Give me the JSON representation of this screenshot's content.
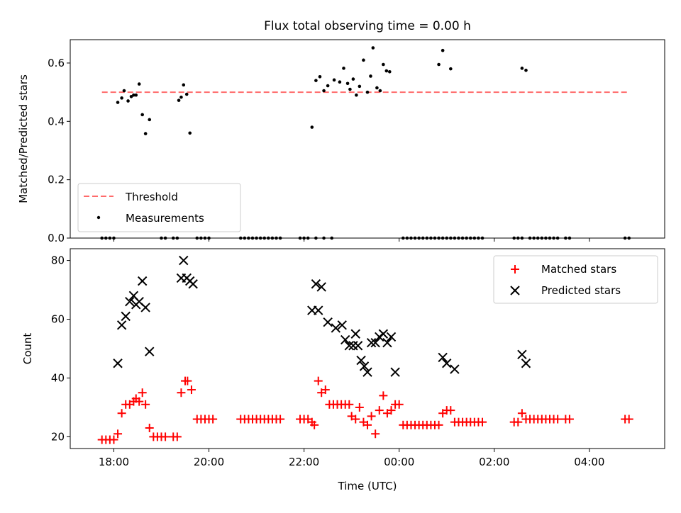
{
  "title": "Flux total observing time = 0.00 h",
  "colors": {
    "threshold": "#ff6b6b",
    "measurement": "#000000",
    "matched": "#ff0000",
    "predicted": "#000000"
  },
  "chart_data": [
    {
      "type": "scatter",
      "title": "Flux total observing time = 0.00 h",
      "xlabel": "",
      "ylabel": "Matched/Predicted stars",
      "xlim": [
        "17:05",
        "05:35"
      ],
      "ylim": [
        0.0,
        0.68
      ],
      "y_ticks": [
        0.0,
        0.2,
        0.4,
        0.6
      ],
      "y_tick_labels": [
        "0.0",
        "0.2",
        "0.4",
        "0.6"
      ],
      "grid": false,
      "legend": "lower-left",
      "threshold": {
        "name": "Threshold",
        "value": 0.5,
        "x_start": "17:45",
        "x_end": "04:50",
        "style": "dashed"
      },
      "series": [
        {
          "name": "Measurements",
          "points": [
            [
              "17:45",
              0
            ],
            [
              "17:50",
              0
            ],
            [
              "17:55",
              0
            ],
            [
              "18:00",
              0
            ],
            [
              "18:05",
              0.465
            ],
            [
              "18:10",
              0.48
            ],
            [
              "18:13",
              0.505
            ],
            [
              "18:18",
              0.47
            ],
            [
              "18:22",
              0.485
            ],
            [
              "18:25",
              0.49
            ],
            [
              "18:28",
              0.49
            ],
            [
              "18:32",
              0.528
            ],
            [
              "18:36",
              0.423
            ],
            [
              "18:40",
              0.358
            ],
            [
              "18:45",
              0.406
            ],
            [
              "19:00",
              0
            ],
            [
              "19:05",
              0
            ],
            [
              "19:15",
              0
            ],
            [
              "19:20",
              0
            ],
            [
              "19:22",
              0.472
            ],
            [
              "19:25",
              0.483
            ],
            [
              "19:28",
              0.525
            ],
            [
              "19:32",
              0.493
            ],
            [
              "19:36",
              0.36
            ],
            [
              "19:45",
              0
            ],
            [
              "19:50",
              0
            ],
            [
              "19:55",
              0
            ],
            [
              "20:00",
              0
            ],
            [
              "20:40",
              0
            ],
            [
              "20:45",
              0
            ],
            [
              "20:50",
              0
            ],
            [
              "20:55",
              0
            ],
            [
              "21:00",
              0
            ],
            [
              "21:05",
              0
            ],
            [
              "21:10",
              0
            ],
            [
              "21:15",
              0
            ],
            [
              "21:20",
              0
            ],
            [
              "21:25",
              0
            ],
            [
              "21:30",
              0
            ],
            [
              "21:55",
              0
            ],
            [
              "22:00",
              0
            ],
            [
              "22:05",
              0
            ],
            [
              "22:15",
              0
            ],
            [
              "22:10",
              0.38
            ],
            [
              "22:15",
              0.54
            ],
            [
              "22:20",
              0.553
            ],
            [
              "22:25",
              0.505
            ],
            [
              "22:30",
              0.522
            ],
            [
              "22:38",
              0.542
            ],
            [
              "22:45",
              0.535
            ],
            [
              "22:50",
              0.582
            ],
            [
              "22:55",
              0.53
            ],
            [
              "22:58",
              0.51
            ],
            [
              "23:02",
              0.545
            ],
            [
              "23:06",
              0.49
            ],
            [
              "23:10",
              0.52
            ],
            [
              "23:15",
              0.61
            ],
            [
              "23:20",
              0.5
            ],
            [
              "23:24",
              0.555
            ],
            [
              "23:27",
              0.652
            ],
            [
              "23:32",
              0.515
            ],
            [
              "23:36",
              0.505
            ],
            [
              "23:40",
              0.595
            ],
            [
              "23:44",
              0.573
            ],
            [
              "23:48",
              0.57
            ],
            [
              "22:25",
              0
            ],
            [
              "22:35",
              0
            ],
            [
              "00:05",
              0
            ],
            [
              "00:10",
              0
            ],
            [
              "00:15",
              0
            ],
            [
              "00:20",
              0
            ],
            [
              "00:25",
              0
            ],
            [
              "00:30",
              0
            ],
            [
              "00:35",
              0
            ],
            [
              "00:40",
              0
            ],
            [
              "00:45",
              0
            ],
            [
              "00:50",
              0
            ],
            [
              "00:50",
              0.595
            ],
            [
              "00:55",
              0.643
            ],
            [
              "01:05",
              0.58
            ],
            [
              "00:55",
              0
            ],
            [
              "01:00",
              0
            ],
            [
              "01:05",
              0
            ],
            [
              "01:10",
              0
            ],
            [
              "01:15",
              0
            ],
            [
              "01:20",
              0
            ],
            [
              "01:25",
              0
            ],
            [
              "01:30",
              0
            ],
            [
              "01:35",
              0
            ],
            [
              "01:40",
              0
            ],
            [
              "01:45",
              0
            ],
            [
              "02:25",
              0
            ],
            [
              "02:30",
              0
            ],
            [
              "02:35",
              0
            ],
            [
              "02:35",
              0.582
            ],
            [
              "02:40",
              0.575
            ],
            [
              "02:45",
              0
            ],
            [
              "02:50",
              0
            ],
            [
              "02:55",
              0
            ],
            [
              "03:00",
              0
            ],
            [
              "03:05",
              0
            ],
            [
              "03:10",
              0
            ],
            [
              "03:15",
              0
            ],
            [
              "03:20",
              0
            ],
            [
              "03:30",
              0
            ],
            [
              "03:35",
              0
            ],
            [
              "04:45",
              0
            ],
            [
              "04:50",
              0
            ]
          ]
        }
      ]
    },
    {
      "type": "scatter",
      "xlabel": "Time (UTC)",
      "ylabel": "Count",
      "xlim": [
        "17:05",
        "05:35"
      ],
      "ylim": [
        16,
        84
      ],
      "y_ticks": [
        20,
        40,
        60,
        80
      ],
      "y_tick_labels": [
        "20",
        "40",
        "60",
        "80"
      ],
      "x_ticks": [
        "18:00",
        "20:00",
        "22:00",
        "00:00",
        "02:00",
        "04:00"
      ],
      "x_tick_labels": [
        "18:00",
        "20:00",
        "22:00",
        "00:00",
        "02:00",
        "04:00"
      ],
      "grid": false,
      "legend": "top-right",
      "series": [
        {
          "name": "Matched stars",
          "marker": "plus",
          "points": [
            [
              "17:45",
              19
            ],
            [
              "17:50",
              19
            ],
            [
              "17:55",
              19
            ],
            [
              "18:00",
              19
            ],
            [
              "18:05",
              21
            ],
            [
              "18:10",
              28
            ],
            [
              "18:15",
              31
            ],
            [
              "18:20",
              31
            ],
            [
              "18:25",
              32
            ],
            [
              "18:28",
              33
            ],
            [
              "18:32",
              32
            ],
            [
              "18:36",
              35
            ],
            [
              "18:40",
              31
            ],
            [
              "18:45",
              23
            ],
            [
              "18:50",
              20
            ],
            [
              "18:55",
              20
            ],
            [
              "19:00",
              20
            ],
            [
              "19:05",
              20
            ],
            [
              "19:15",
              20
            ],
            [
              "19:20",
              20
            ],
            [
              "19:25",
              35
            ],
            [
              "19:30",
              39
            ],
            [
              "19:33",
              39
            ],
            [
              "19:38",
              36
            ],
            [
              "19:45",
              26
            ],
            [
              "19:50",
              26
            ],
            [
              "19:55",
              26
            ],
            [
              "20:00",
              26
            ],
            [
              "20:05",
              26
            ],
            [
              "20:40",
              26
            ],
            [
              "20:45",
              26
            ],
            [
              "20:50",
              26
            ],
            [
              "20:55",
              26
            ],
            [
              "21:00",
              26
            ],
            [
              "21:05",
              26
            ],
            [
              "21:10",
              26
            ],
            [
              "21:15",
              26
            ],
            [
              "21:20",
              26
            ],
            [
              "21:25",
              26
            ],
            [
              "21:30",
              26
            ],
            [
              "21:55",
              26
            ],
            [
              "22:00",
              26
            ],
            [
              "22:05",
              26
            ],
            [
              "22:10",
              25
            ],
            [
              "22:13",
              24
            ],
            [
              "22:18",
              39
            ],
            [
              "22:22",
              35
            ],
            [
              "22:27",
              36
            ],
            [
              "22:32",
              31
            ],
            [
              "22:37",
              31
            ],
            [
              "22:42",
              31
            ],
            [
              "22:47",
              31
            ],
            [
              "22:52",
              31
            ],
            [
              "22:57",
              31
            ],
            [
              "23:00",
              27
            ],
            [
              "23:05",
              26
            ],
            [
              "23:10",
              30
            ],
            [
              "23:15",
              25
            ],
            [
              "23:20",
              24
            ],
            [
              "23:25",
              27
            ],
            [
              "23:30",
              21
            ],
            [
              "23:35",
              29
            ],
            [
              "23:40",
              34
            ],
            [
              "23:45",
              28
            ],
            [
              "23:50",
              29
            ],
            [
              "23:55",
              31
            ],
            [
              "00:00",
              31
            ],
            [
              "00:05",
              24
            ],
            [
              "00:10",
              24
            ],
            [
              "00:15",
              24
            ],
            [
              "00:20",
              24
            ],
            [
              "00:25",
              24
            ],
            [
              "00:30",
              24
            ],
            [
              "00:35",
              24
            ],
            [
              "00:40",
              24
            ],
            [
              "00:45",
              24
            ],
            [
              "00:50",
              24
            ],
            [
              "00:55",
              28
            ],
            [
              "01:00",
              29
            ],
            [
              "01:05",
              29
            ],
            [
              "01:10",
              25
            ],
            [
              "01:15",
              25
            ],
            [
              "01:20",
              25
            ],
            [
              "01:25",
              25
            ],
            [
              "01:30",
              25
            ],
            [
              "01:35",
              25
            ],
            [
              "01:40",
              25
            ],
            [
              "01:45",
              25
            ],
            [
              "02:25",
              25
            ],
            [
              "02:30",
              25
            ],
            [
              "02:35",
              28
            ],
            [
              "02:40",
              26
            ],
            [
              "02:45",
              26
            ],
            [
              "02:50",
              26
            ],
            [
              "02:55",
              26
            ],
            [
              "03:00",
              26
            ],
            [
              "03:05",
              26
            ],
            [
              "03:10",
              26
            ],
            [
              "03:15",
              26
            ],
            [
              "03:20",
              26
            ],
            [
              "03:30",
              26
            ],
            [
              "03:35",
              26
            ],
            [
              "04:45",
              26
            ],
            [
              "04:50",
              26
            ]
          ]
        },
        {
          "name": "Predicted stars",
          "marker": "x",
          "points": [
            [
              "18:05",
              45
            ],
            [
              "18:10",
              58
            ],
            [
              "18:15",
              61
            ],
            [
              "18:20",
              66
            ],
            [
              "18:25",
              68
            ],
            [
              "18:28",
              65
            ],
            [
              "18:32",
              66
            ],
            [
              "18:36",
              73
            ],
            [
              "18:40",
              64
            ],
            [
              "18:45",
              49
            ],
            [
              "19:25",
              74
            ],
            [
              "19:28",
              80
            ],
            [
              "19:32",
              74
            ],
            [
              "19:36",
              73
            ],
            [
              "19:40",
              72
            ],
            [
              "22:10",
              63
            ],
            [
              "22:15",
              72
            ],
            [
              "22:18",
              63
            ],
            [
              "22:22",
              71
            ],
            [
              "22:30",
              59
            ],
            [
              "22:40",
              57
            ],
            [
              "22:48",
              58
            ],
            [
              "22:52",
              53
            ],
            [
              "22:57",
              51
            ],
            [
              "23:02",
              51
            ],
            [
              "23:05",
              55
            ],
            [
              "23:08",
              51
            ],
            [
              "23:12",
              46
            ],
            [
              "23:16",
              44
            ],
            [
              "23:20",
              42
            ],
            [
              "23:25",
              52
            ],
            [
              "23:30",
              52
            ],
            [
              "23:35",
              54
            ],
            [
              "23:40",
              55
            ],
            [
              "23:45",
              52
            ],
            [
              "23:50",
              54
            ],
            [
              "23:55",
              42
            ],
            [
              "00:55",
              47
            ],
            [
              "01:00",
              45
            ],
            [
              "01:10",
              43
            ],
            [
              "02:35",
              48
            ],
            [
              "02:40",
              45
            ]
          ]
        }
      ]
    }
  ]
}
